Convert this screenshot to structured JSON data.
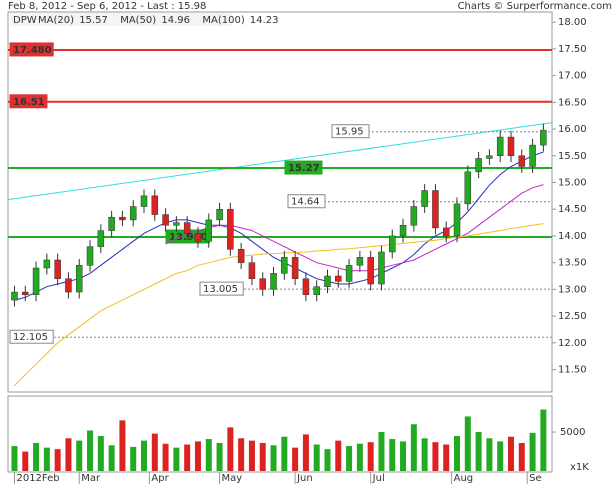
{
  "chart_data": {
    "type": "candlestick",
    "header": "Feb 8, 2012 - Sep 6, 2012 - Last : 15.98",
    "credit": "Charts © Surperformance.com",
    "symbol": "DPW",
    "xlim": [
      -0.6,
      49.8
    ],
    "xticks": [
      {
        "value": 0,
        "label": "2012Feb"
      },
      {
        "value": 6,
        "label": "Mar"
      },
      {
        "value": 12.5,
        "label": "Apr"
      },
      {
        "value": 19,
        "label": "May"
      },
      {
        "value": 26,
        "label": "Jun"
      },
      {
        "value": 33,
        "label": "Jul"
      },
      {
        "value": 40.5,
        "label": "Aug"
      },
      {
        "value": 47.5,
        "label": "Se"
      }
    ],
    "ylim": [
      11.08,
      18.19
    ],
    "yticks": [
      {
        "value": 11.5,
        "label": "11.50"
      },
      {
        "value": 12,
        "label": "12.00"
      },
      {
        "value": 12.5,
        "label": "12.50"
      },
      {
        "value": 13,
        "label": "13.00"
      },
      {
        "value": 13.5,
        "label": "13.50"
      },
      {
        "value": 14,
        "label": "14.00"
      },
      {
        "value": 14.5,
        "label": "14.50"
      },
      {
        "value": 15,
        "label": "15.00"
      },
      {
        "value": 15.5,
        "label": "15.50"
      },
      {
        "value": 16,
        "label": "16.00"
      },
      {
        "value": 16.5,
        "label": "16.50"
      },
      {
        "value": 17,
        "label": "17.00"
      },
      {
        "value": 17.5,
        "label": "17.50"
      },
      {
        "value": 18,
        "label": "18.00"
      }
    ],
    "up_color": "#22aa22",
    "down_color": "#dd2222",
    "open": [
      12.8,
      12.95,
      12.9,
      13.4,
      13.55,
      13.2,
      12.95,
      13.45,
      13.8,
      14.1,
      14.35,
      14.3,
      14.55,
      14.75,
      14.4,
      14.2,
      14.25,
      14.05,
      13.9,
      14.3,
      14.5,
      13.75,
      13.5,
      13.2,
      13.0,
      13.3,
      13.6,
      13.2,
      12.9,
      13.05,
      13.25,
      13.15,
      13.45,
      13.6,
      13.1,
      13.7,
      14.0,
      14.2,
      14.55,
      14.85,
      14.15,
      14.0,
      14.6,
      15.2,
      15.45,
      15.5,
      15.85,
      15.5,
      15.3,
      15.7
    ],
    "high": [
      13.07,
      13.07,
      13.52,
      13.67,
      13.67,
      13.32,
      13.57,
      13.92,
      14.22,
      14.47,
      14.47,
      14.67,
      14.87,
      14.87,
      14.52,
      14.37,
      14.37,
      14.17,
      14.42,
      14.62,
      14.62,
      13.87,
      13.62,
      13.32,
      13.42,
      13.72,
      13.72,
      13.32,
      13.17,
      13.37,
      13.37,
      13.57,
      13.72,
      13.72,
      13.82,
      14.12,
      14.32,
      14.67,
      14.97,
      14.97,
      14.27,
      14.72,
      15.32,
      15.57,
      15.62,
      15.97,
      15.97,
      15.62,
      15.82,
      16.1
    ],
    "low": [
      12.68,
      12.78,
      12.78,
      13.28,
      13.08,
      12.83,
      12.83,
      13.33,
      13.68,
      13.98,
      14.18,
      14.18,
      14.43,
      14.28,
      14.08,
      14.08,
      13.93,
      13.78,
      13.78,
      14.18,
      13.63,
      13.38,
      13.08,
      12.88,
      12.88,
      13.18,
      13.08,
      12.78,
      12.78,
      12.93,
      13.03,
      13.03,
      13.33,
      12.98,
      12.98,
      13.58,
      13.88,
      14.08,
      14.43,
      14.03,
      13.88,
      13.88,
      14.48,
      15.08,
      15.33,
      15.38,
      15.38,
      15.18,
      15.18,
      15.58
    ],
    "close": [
      12.95,
      12.9,
      13.4,
      13.55,
      13.2,
      12.95,
      13.45,
      13.8,
      14.1,
      14.35,
      14.3,
      14.55,
      14.75,
      14.4,
      14.2,
      14.25,
      14.05,
      13.9,
      14.3,
      14.5,
      13.75,
      13.5,
      13.2,
      13.0,
      13.3,
      13.6,
      13.2,
      12.9,
      13.05,
      13.25,
      13.15,
      13.45,
      13.6,
      13.1,
      13.7,
      14.0,
      14.2,
      14.55,
      14.85,
      14.15,
      14.0,
      14.6,
      15.2,
      15.45,
      15.5,
      15.85,
      15.5,
      15.3,
      15.7,
      15.98
    ],
    "series": [
      {
        "name": "MA(20)",
        "last": 15.57,
        "color": "#2233bb",
        "values": [
          12.8,
          12.85,
          12.95,
          13.05,
          13.1,
          13.15,
          13.2,
          13.3,
          13.45,
          13.6,
          13.75,
          13.9,
          14.05,
          14.15,
          14.25,
          14.3,
          14.3,
          14.25,
          14.2,
          14.2,
          14.15,
          14.05,
          13.9,
          13.75,
          13.6,
          13.5,
          13.4,
          13.3,
          13.2,
          13.15,
          13.1,
          13.1,
          13.15,
          13.2,
          13.3,
          13.4,
          13.5,
          13.65,
          13.85,
          14.0,
          14.1,
          14.25,
          14.45,
          14.7,
          14.95,
          15.15,
          15.3,
          15.4,
          15.5,
          15.57
        ]
      },
      {
        "name": "MA(50)",
        "last": 14.96,
        "color": "#cc22cc",
        "values": [
          null,
          null,
          null,
          null,
          null,
          null,
          null,
          null,
          null,
          null,
          null,
          null,
          null,
          null,
          13.85,
          13.95,
          14.05,
          14.1,
          14.15,
          14.2,
          14.2,
          14.15,
          14.1,
          14.0,
          13.9,
          13.8,
          13.7,
          13.6,
          13.5,
          13.45,
          13.4,
          13.35,
          13.35,
          13.35,
          13.4,
          13.45,
          13.5,
          13.55,
          13.65,
          13.75,
          13.85,
          13.95,
          14.05,
          14.2,
          14.35,
          14.5,
          14.65,
          14.8,
          14.9,
          14.96
        ]
      },
      {
        "name": "MA(100)",
        "last": 14.23,
        "color": "#f0c020",
        "values": [
          11.2,
          11.4,
          11.6,
          11.8,
          12.0,
          12.15,
          12.3,
          12.45,
          12.6,
          12.7,
          12.8,
          12.9,
          13.0,
          13.1,
          13.2,
          13.3,
          13.35,
          13.45,
          13.5,
          13.55,
          13.6,
          13.62,
          13.64,
          13.66,
          13.67,
          13.68,
          13.69,
          13.7,
          13.72,
          13.73,
          13.75,
          13.76,
          13.78,
          13.8,
          13.82,
          13.84,
          13.86,
          13.88,
          13.9,
          13.92,
          13.95,
          13.98,
          14.0,
          14.03,
          14.07,
          14.1,
          14.14,
          14.17,
          14.2,
          14.23
        ]
      }
    ],
    "trendline": {
      "from": 14.68,
      "to": 16.12,
      "color": "#33dddd"
    },
    "levels": [
      {
        "value": 17.48,
        "label": "17.480",
        "color": "#e03030",
        "style": "solid"
      },
      {
        "value": 16.51,
        "label": "16.51",
        "color": "#e03030",
        "style": "solid"
      },
      {
        "value": 15.95,
        "label": "15.95",
        "color": "#888888",
        "style": "dotted"
      },
      {
        "value": 15.27,
        "label": "15.27",
        "color": "#22aa22",
        "style": "solid"
      },
      {
        "value": 14.64,
        "label": "14.64",
        "color": "#888888",
        "style": "dotted"
      },
      {
        "value": 13.98,
        "label": "13.980",
        "color": "#22aa22",
        "style": "solid"
      },
      {
        "value": 13.005,
        "label": "13.005",
        "color": "#888888",
        "style": "dotted"
      },
      {
        "value": 12.105,
        "label": "12.105",
        "color": "#888888",
        "style": "dotted"
      }
    ],
    "volume": {
      "unit": "x1K",
      "ylim": [
        0,
        9500
      ],
      "yticks": [
        5000
      ],
      "values": [
        3200,
        2500,
        3600,
        3000,
        2800,
        4200,
        3900,
        5200,
        4500,
        3300,
        6500,
        3100,
        3900,
        4800,
        3500,
        3000,
        3400,
        3800,
        4100,
        3600,
        5600,
        4200,
        3900,
        3600,
        3300,
        4400,
        3000,
        4700,
        3400,
        2800,
        3900,
        3200,
        3500,
        3700,
        5000,
        4100,
        3800,
        6000,
        4200,
        3700,
        3400,
        4500,
        7000,
        5000,
        4200,
        3800,
        4400,
        3600,
        4900,
        7900
      ]
    }
  }
}
